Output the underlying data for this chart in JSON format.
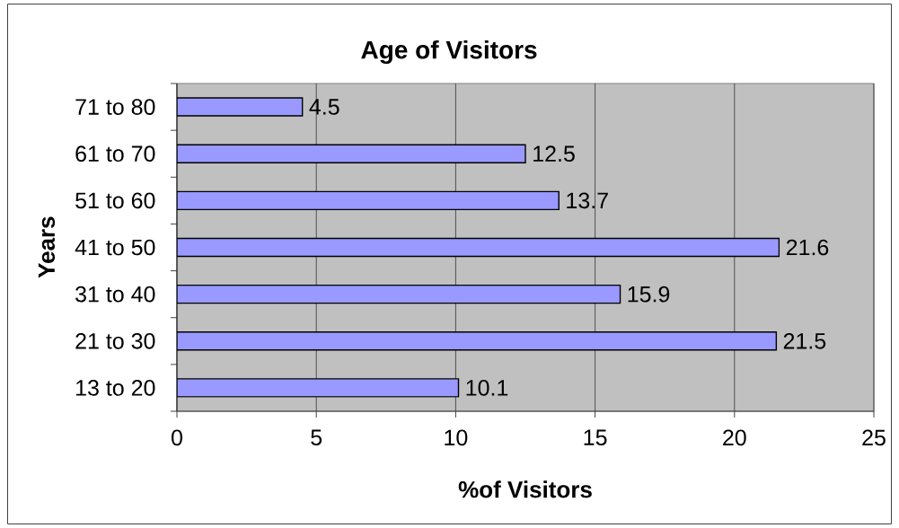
{
  "chart_data": {
    "type": "bar",
    "orientation": "horizontal",
    "title": "Age of Visitors",
    "xlabel": "%of Visitors",
    "ylabel": "Years",
    "categories": [
      "71 to 80",
      "61 to 70",
      "51 to 60",
      "41 to 50",
      "31 to 40",
      "21 to 30",
      "13 to 20"
    ],
    "values": [
      4.5,
      12.5,
      13.7,
      21.6,
      15.9,
      21.5,
      10.1
    ],
    "color": "#9999ff",
    "xlim": [
      0,
      25
    ],
    "xticks": [
      0,
      5,
      10,
      15,
      20,
      25
    ],
    "grid": "x",
    "data_labels": true
  }
}
